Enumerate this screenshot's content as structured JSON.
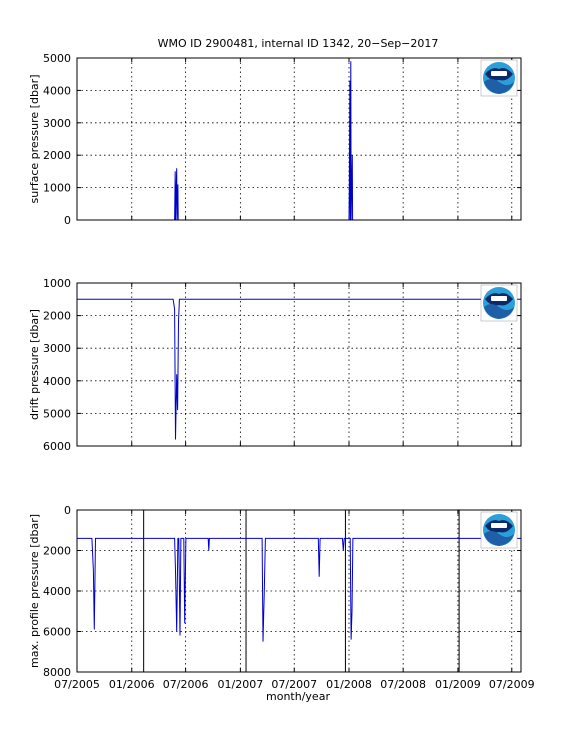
{
  "title": "WMO ID 2900481, internal ID 1342, 20−Sep−2017",
  "xlabel": "month/year",
  "colors": {
    "series": "#0000cc",
    "logo_blue": "#1f5fa8",
    "logo_navy": "#0a2a6b",
    "logo_cyan": "#2a9fd8"
  },
  "x_axis": {
    "range": [
      "2005-07",
      "2009-08"
    ],
    "ticks": [
      {
        "date": "2005-07",
        "label": "07/2005"
      },
      {
        "date": "2006-01",
        "label": "01/2006"
      },
      {
        "date": "2006-07",
        "label": "07/2006"
      },
      {
        "date": "2007-01",
        "label": "01/2007"
      },
      {
        "date": "2007-07",
        "label": "07/2007"
      },
      {
        "date": "2008-01",
        "label": "01/2008"
      },
      {
        "date": "2008-07",
        "label": "07/2008"
      },
      {
        "date": "2009-01",
        "label": "01/2009"
      },
      {
        "date": "2009-07",
        "label": "07/2009"
      }
    ]
  },
  "chart_data": [
    {
      "type": "line",
      "name": "surface",
      "ylabel": "surface pressure [dbar]",
      "ylim": [
        0,
        5000
      ],
      "y_reversed": false,
      "grid": true,
      "yticks": [
        0,
        1000,
        2000,
        3000,
        4000,
        5000
      ],
      "logo": "noaa-logo",
      "series": [
        {
          "x": [
            "2005-07-01",
            "2006-05-25",
            "2006-05-27",
            "2006-05-28",
            "2006-06-01",
            "2006-06-02",
            "2006-06-05",
            "2006-06-06",
            "2008-01-01",
            "2008-01-02",
            "2008-01-04",
            "2008-01-05",
            "2008-01-07",
            "2008-01-08",
            "2008-01-12",
            "2008-01-13",
            "2009-08-01"
          ],
          "y": [
            0,
            0,
            1500,
            0,
            1600,
            0,
            1100,
            0,
            0,
            900,
            4300,
            0,
            4900,
            0,
            2000,
            0,
            0
          ]
        }
      ]
    },
    {
      "type": "line",
      "name": "drift",
      "ylabel": "drift pressure [dbar]",
      "ylim": [
        1000,
        6000
      ],
      "y_reversed": true,
      "grid": true,
      "yticks": [
        1000,
        2000,
        3000,
        4000,
        5000,
        6000
      ],
      "logo": "noaa-logo",
      "series": [
        {
          "x": [
            "2005-07-01",
            "2006-05-20",
            "2006-05-25",
            "2006-05-28",
            "2006-06-01",
            "2006-06-04",
            "2006-06-07",
            "2006-06-10",
            "2009-08-01"
          ],
          "y": [
            1500,
            1500,
            1800,
            5800,
            3800,
            4900,
            2200,
            1500,
            1500
          ]
        }
      ]
    },
    {
      "type": "line",
      "name": "maxprofile",
      "ylabel": "max. profile pressure [dbar]",
      "ylim": [
        0,
        8000
      ],
      "y_reversed": true,
      "grid": true,
      "yticks": [
        0,
        2000,
        4000,
        6000,
        8000
      ],
      "vertical_lines": [
        "2006-02-10",
        "2007-01-20",
        "2007-12-20",
        "2009-01-05"
      ],
      "logo": "noaa-logo",
      "series": [
        {
          "x": [
            "2005-07-01",
            "2005-08-20",
            "2005-08-25",
            "2005-08-28",
            "2005-09-01",
            "2006-05-25",
            "2006-05-28",
            "2006-06-01",
            "2006-06-05",
            "2006-06-08",
            "2006-06-12",
            "2006-06-15",
            "2006-06-25",
            "2006-06-28",
            "2006-07-02",
            "2006-07-06",
            "2006-07-10",
            "2006-07-14",
            "2006-09-15",
            "2006-09-17",
            "2006-09-19",
            "2006-09-21",
            "2007-03-15",
            "2007-03-18",
            "2007-03-22",
            "2007-03-26",
            "2007-03-30",
            "2007-09-20",
            "2007-09-23",
            "2007-09-26",
            "2007-09-29",
            "2007-12-10",
            "2007-12-13",
            "2007-12-16",
            "2008-01-05",
            "2008-01-08",
            "2008-01-11",
            "2008-01-14",
            "2008-01-17",
            "2008-01-20",
            "2009-08-01"
          ],
          "y": [
            1400,
            1400,
            3000,
            5900,
            1400,
            1400,
            3000,
            6000,
            1400,
            1400,
            6200,
            1400,
            1400,
            5600,
            1400,
            1400,
            1400,
            1400,
            1400,
            2000,
            1400,
            1400,
            1400,
            6500,
            4200,
            1400,
            1400,
            1400,
            3300,
            1400,
            1400,
            1400,
            2000,
            1400,
            1400,
            6400,
            5000,
            1400,
            1400,
            1400,
            1400
          ]
        }
      ]
    }
  ]
}
